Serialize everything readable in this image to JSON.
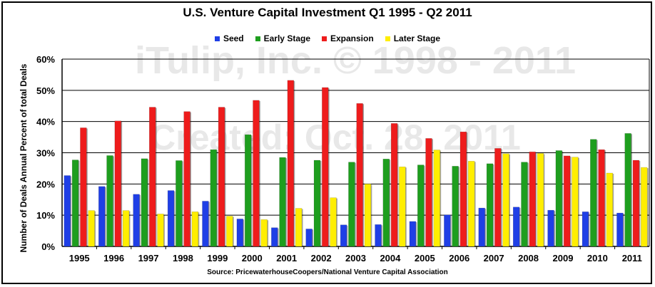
{
  "chart_data": {
    "type": "bar",
    "title": "U.S. Venture Capital Investment Q1 1995 - Q2 2011",
    "ylabel": "Number of Deals Annual Percent of total Deals",
    "xlabel": "",
    "source": "Source: PricewaterhouseCoopers/National Venture Capital Association",
    "watermark": [
      "iTulip, Inc. © 1998 - 2011",
      "Created: Oct. 28, 2011"
    ],
    "ylim": [
      0,
      60
    ],
    "yticks": [
      "0%",
      "10%",
      "20%",
      "30%",
      "40%",
      "50%",
      "60%"
    ],
    "grid": true,
    "legend_position": "top",
    "categories": [
      "1995",
      "1996",
      "1997",
      "1998",
      "1999",
      "2000",
      "2001",
      "2002",
      "2003",
      "2004",
      "2005",
      "2006",
      "2007",
      "2008",
      "2009",
      "2010",
      "2011"
    ],
    "series": [
      {
        "name": "Seed",
        "color": "#1f3fe6",
        "values": [
          22.7,
          19.2,
          16.7,
          17.9,
          14.5,
          8.8,
          6.0,
          5.6,
          6.9,
          7.0,
          8.0,
          10.1,
          12.3,
          12.6,
          11.6,
          11.1,
          10.7
        ]
      },
      {
        "name": "Early Stage",
        "color": "#1e9e1e",
        "values": [
          27.7,
          29.1,
          28.1,
          27.5,
          31.0,
          35.8,
          28.5,
          27.6,
          27.0,
          28.0,
          26.1,
          25.7,
          26.5,
          27.0,
          30.7,
          34.3,
          36.2
        ]
      },
      {
        "name": "Expansion",
        "color": "#ee1c1c",
        "values": [
          38.0,
          40.2,
          44.6,
          43.2,
          44.6,
          46.8,
          53.2,
          50.9,
          45.8,
          39.4,
          34.6,
          36.7,
          31.4,
          30.3,
          29.0,
          31.0,
          27.6
        ]
      },
      {
        "name": "Later Stage",
        "color": "#ffee00",
        "values": [
          11.5,
          11.5,
          10.4,
          11.1,
          9.7,
          8.6,
          12.2,
          15.6,
          20.0,
          25.5,
          30.9,
          27.3,
          29.7,
          29.8,
          28.6,
          23.5,
          25.3
        ]
      }
    ]
  }
}
